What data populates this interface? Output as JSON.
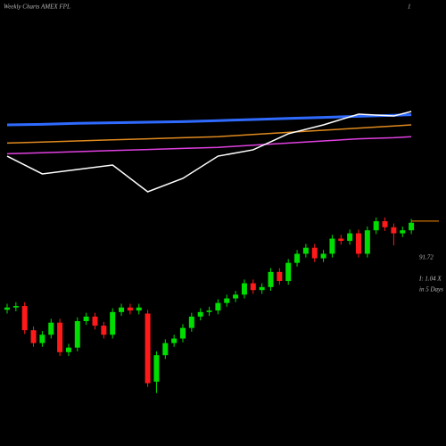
{
  "chart_data": [
    {
      "type": "candlestick",
      "title": "Weekly Charts AMEX FPL",
      "corner_label": "1",
      "annotations": [
        "I: 1.04  X",
        "in 5 Days"
      ],
      "last_price": 91.72,
      "last_price_color": "#ff8c00",
      "up_color": "#00dd00",
      "down_color": "#ff1a1a",
      "open": [
        80.0,
        80.3,
        80.5,
        77.3,
        75.6,
        76.7,
        78.3,
        74.4,
        75.0,
        78.5,
        79.1,
        77.9,
        76.7,
        79.7,
        80.3,
        79.9,
        79.5,
        70.5,
        74.0,
        75.6,
        76.2,
        77.6,
        79.1,
        79.7,
        79.9,
        80.9,
        81.5,
        82.0,
        83.5,
        82.6,
        83.0,
        85.0,
        83.8,
        86.2,
        87.4,
        88.2,
        86.8,
        87.4,
        89.4,
        89.1,
        90.1,
        87.4,
        90.5,
        91.7,
        90.9,
        90.1,
        90.5
      ],
      "high": [
        80.8,
        81.0,
        81.0,
        77.8,
        77.2,
        78.8,
        78.8,
        75.5,
        79.0,
        79.6,
        79.6,
        78.4,
        80.2,
        80.8,
        80.8,
        80.8,
        80.0,
        74.5,
        76.1,
        76.7,
        78.1,
        79.6,
        80.2,
        80.4,
        81.4,
        82.0,
        82.5,
        84.0,
        84.0,
        83.5,
        85.5,
        85.5,
        86.7,
        87.9,
        88.7,
        88.7,
        87.9,
        89.9,
        89.9,
        90.6,
        90.6,
        91.0,
        92.2,
        92.2,
        91.4,
        91.0,
        92.0
      ],
      "low": [
        79.5,
        79.8,
        76.8,
        75.1,
        75.1,
        76.2,
        73.9,
        73.9,
        74.5,
        78.0,
        77.4,
        76.2,
        76.2,
        79.2,
        79.4,
        79.4,
        69.8,
        69.0,
        73.5,
        75.1,
        75.7,
        77.1,
        78.6,
        79.2,
        79.4,
        80.4,
        81.0,
        81.5,
        82.1,
        82.1,
        82.5,
        83.3,
        83.3,
        85.7,
        86.9,
        86.3,
        86.3,
        86.9,
        88.6,
        88.6,
        86.9,
        86.9,
        90.0,
        90.4,
        88.5,
        89.6,
        90.0
      ],
      "close": [
        80.3,
        80.5,
        77.3,
        75.6,
        76.7,
        78.3,
        74.4,
        75.0,
        78.5,
        79.1,
        77.9,
        76.7,
        79.7,
        80.3,
        79.9,
        80.3,
        70.3,
        74.0,
        75.6,
        76.2,
        77.6,
        79.1,
        79.7,
        79.9,
        80.9,
        81.5,
        82.0,
        83.5,
        82.6,
        83.0,
        85.0,
        83.8,
        86.2,
        87.4,
        88.2,
        86.8,
        87.4,
        89.4,
        89.1,
        90.1,
        87.4,
        90.5,
        91.7,
        90.9,
        90.1,
        90.5,
        91.5
      ],
      "ylim": [
        62,
        95
      ]
    },
    {
      "type": "line",
      "x": [
        0,
        4,
        8,
        12,
        16,
        20,
        24,
        28,
        32,
        36,
        40,
        44,
        46
      ],
      "xlim": [
        0,
        46
      ],
      "ylim": [
        0,
        100
      ],
      "series": [
        {
          "color": "#2f6bff",
          "values": [
            75,
            75.5,
            76.5,
            77,
            77.5,
            78,
            79,
            80,
            81,
            82,
            83,
            84,
            84.5
          ]
        },
        {
          "color": "#e08a1e",
          "values": [
            58,
            59,
            60,
            61,
            62,
            63,
            64,
            66,
            68,
            70,
            72,
            74,
            75
          ]
        },
        {
          "color": "#e040e0",
          "values": [
            48,
            49,
            50,
            51,
            52,
            53,
            54,
            56,
            58,
            60,
            62,
            63,
            64
          ]
        },
        {
          "color": "#ffffff",
          "values": [
            45.8,
            29.2,
            33.3,
            37.5,
            12.5,
            25,
            45.8,
            51.7,
            66.7,
            75,
            85,
            83.3,
            87.5
          ]
        }
      ]
    }
  ]
}
